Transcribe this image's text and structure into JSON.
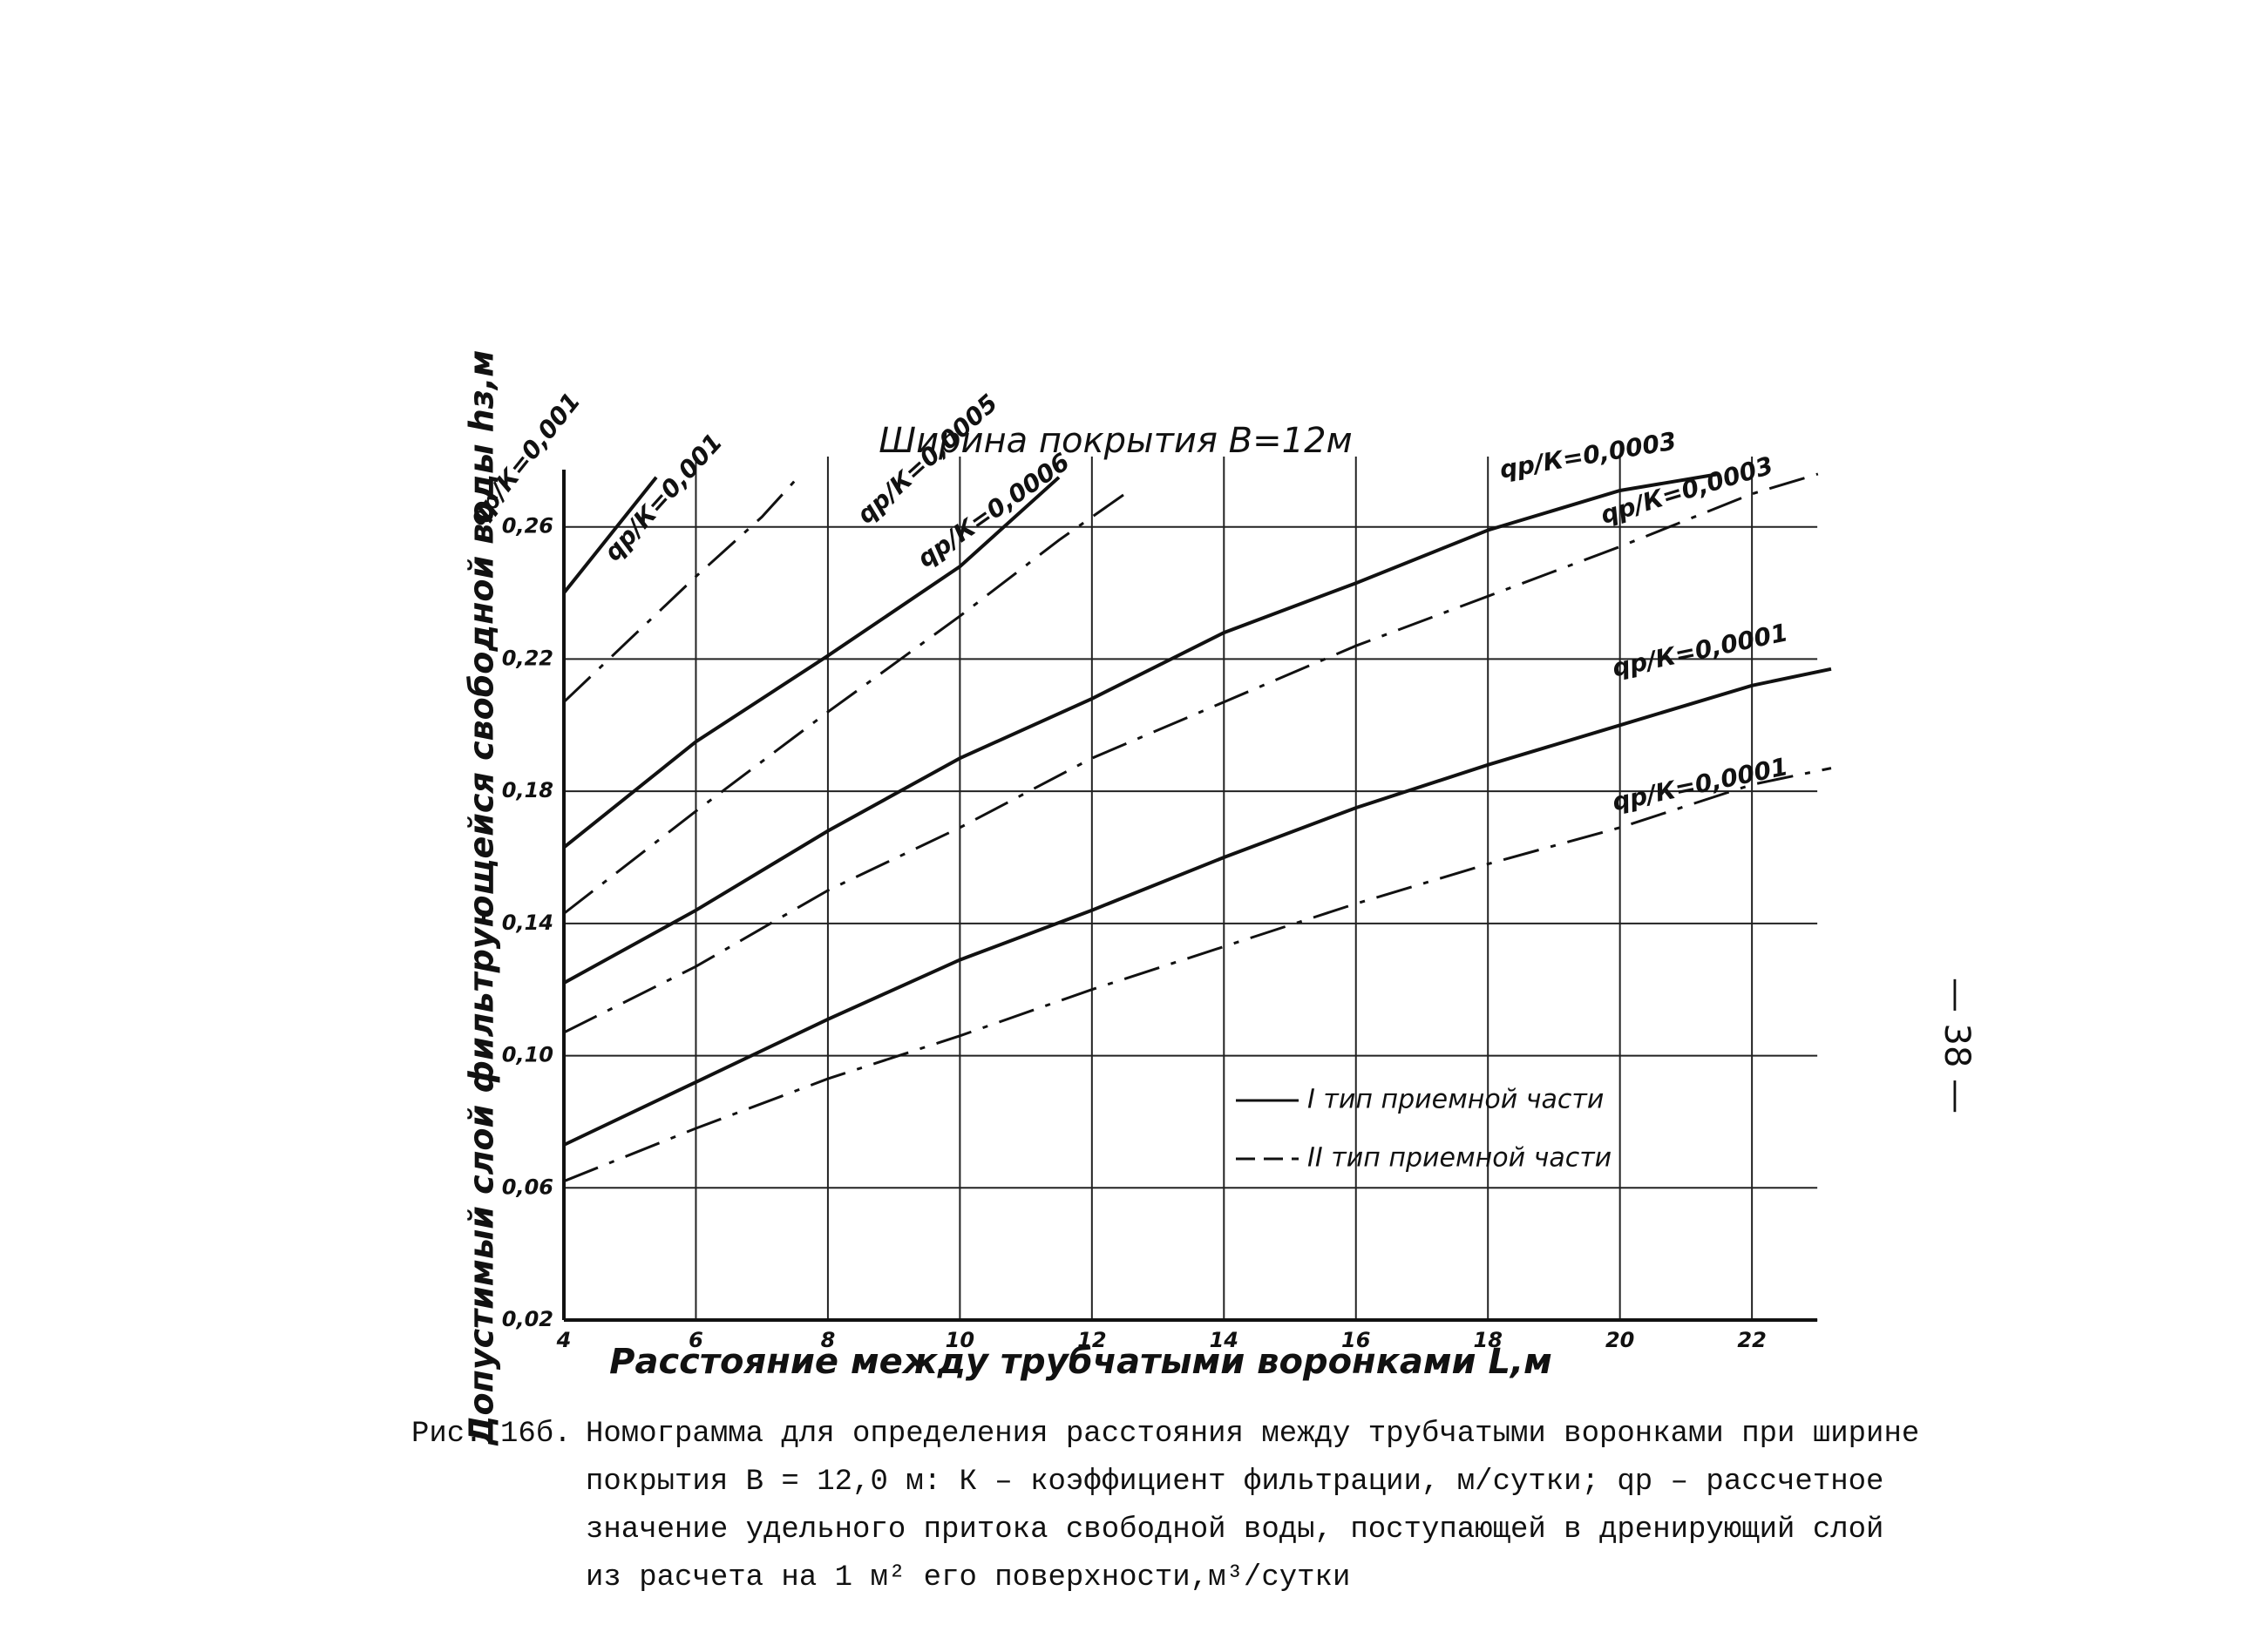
{
  "chart_data": {
    "type": "line",
    "title": "Ширина покрытия B=12м",
    "x_label": "Расстояние между трубчатыми воронками L,м",
    "y_label": "Допустимый слой фильтрующейся свободной воды hз,м",
    "xlim": [
      4,
      23.2
    ],
    "xticks": [
      4,
      6,
      8,
      10,
      12,
      14,
      16,
      18,
      20,
      22
    ],
    "ylim": [
      0.02,
      0.276
    ],
    "yticks": [
      {
        "value": 0.02,
        "label": "0,02"
      },
      {
        "value": 0.06,
        "label": "0,06"
      },
      {
        "value": 0.1,
        "label": "0,10"
      },
      {
        "value": 0.14,
        "label": "0,14"
      },
      {
        "value": 0.18,
        "label": "0,18"
      },
      {
        "value": 0.22,
        "label": "0,22"
      },
      {
        "value": 0.26,
        "label": "0,26"
      }
    ],
    "grid": true,
    "legend": [
      {
        "name": "I тип приемной части",
        "style": "solid"
      },
      {
        "name": "II тип приемной части",
        "style": "dashdot"
      }
    ],
    "series": [
      {
        "name": "qр/К=0,001",
        "style": "solid",
        "color": "#111111",
        "x": [
          4,
          5.4
        ],
        "values": [
          0.24,
          0.275
        ]
      },
      {
        "name": "qр/К=0,001",
        "style": "dashdot",
        "color": "#111111",
        "x": [
          4,
          5,
          6,
          7,
          7.5
        ],
        "values": [
          0.207,
          0.226,
          0.245,
          0.263,
          0.274
        ]
      },
      {
        "name": "qр/К=0,0005",
        "style": "solid",
        "color": "#111111",
        "x": [
          4,
          6,
          8,
          10,
          11.5
        ],
        "values": [
          0.163,
          0.195,
          0.221,
          0.248,
          0.275
        ]
      },
      {
        "name": "qр/К=0,0006",
        "style": "dashdot",
        "color": "#111111",
        "x": [
          4,
          6,
          8,
          10,
          11.5,
          12.5
        ],
        "values": [
          0.143,
          0.174,
          0.204,
          0.233,
          0.256,
          0.27
        ]
      },
      {
        "name": "qр/К=0,0003",
        "style": "solid",
        "color": "#111111",
        "x": [
          4,
          6,
          8,
          10,
          12,
          14,
          16,
          18,
          20,
          21.5
        ],
        "values": [
          0.122,
          0.144,
          0.168,
          0.19,
          0.208,
          0.228,
          0.243,
          0.259,
          0.271,
          0.276
        ]
      },
      {
        "name": "qр/К=0,0003",
        "style": "dashdot",
        "color": "#111111",
        "x": [
          4,
          6,
          8,
          10,
          12,
          14,
          16,
          18,
          20,
          22,
          23
        ],
        "values": [
          0.107,
          0.127,
          0.15,
          0.169,
          0.19,
          0.207,
          0.224,
          0.239,
          0.254,
          0.27,
          0.276
        ]
      },
      {
        "name": "qр/К=0,0001",
        "style": "solid",
        "color": "#111111",
        "x": [
          4,
          6,
          8,
          10,
          12,
          14,
          16,
          18,
          20,
          22,
          23.2
        ],
        "values": [
          0.073,
          0.092,
          0.111,
          0.129,
          0.144,
          0.16,
          0.175,
          0.188,
          0.2,
          0.212,
          0.217
        ]
      },
      {
        "name": "qр/К=0,0001",
        "style": "dashdot",
        "color": "#111111",
        "x": [
          4,
          6,
          8,
          10,
          12,
          14,
          16,
          18,
          20,
          22,
          23.2
        ],
        "values": [
          0.062,
          0.078,
          0.093,
          0.106,
          0.12,
          0.133,
          0.146,
          0.158,
          0.169,
          0.182,
          0.187
        ]
      }
    ]
  },
  "caption": {
    "label": "Рис. 16б.",
    "lines": [
      "Номограмма для определения расстояния между трубчатыми воронками при ширине",
      "покрытия B = 12,0 м: К – коэффициент фильтрации, м/сутки; qр – рассчетное",
      "значение удельного притока свободной воды, поступающей в дренирующий слой",
      "из расчета на 1 м² его поверхности,м³/сутки"
    ]
  },
  "page_number": "— 38 —"
}
